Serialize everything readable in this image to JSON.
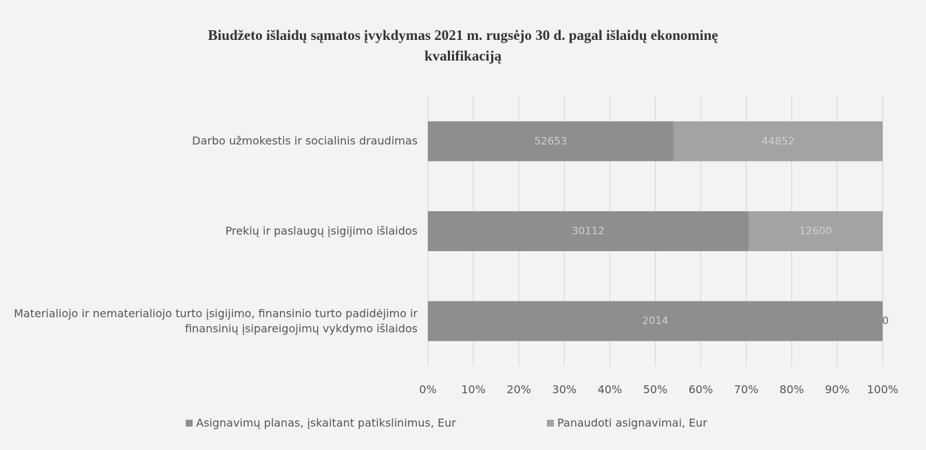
{
  "chart_data": {
    "type": "bar",
    "orientation": "horizontal",
    "stacking": "percent",
    "title": "Biudžeto išlaidų sąmatos įvykdymas 2021 m. rugsėjo 30 d. pagal išlaidų ekonominę kvalifikaciją",
    "categories": [
      "Darbo užmokestis ir socialinis draudimas",
      "Prekių ir paslaugų įsigijimo išlaidos",
      "Materialiojo ir nematerialiojo turto įsigijimo, finansinio turto padidėjimo ir finansinių įsipareigojimų vykdymo išlaidos"
    ],
    "series": [
      {
        "name": "Asignavimų planas, įskaitant patikslinimus, Eur",
        "color": "#8e8e8e",
        "values": [
          52653,
          30112,
          2014
        ]
      },
      {
        "name": "Panaudoti asignavimai, Eur",
        "color": "#a3a3a3",
        "values": [
          44852,
          12600,
          0
        ]
      }
    ],
    "xlim": [
      0,
      100
    ],
    "xticks": [
      {
        "value": 0,
        "label": "0%"
      },
      {
        "value": 10,
        "label": "10%"
      },
      {
        "value": 20,
        "label": "20%"
      },
      {
        "value": 30,
        "label": "30%"
      },
      {
        "value": 40,
        "label": "40%"
      },
      {
        "value": 50,
        "label": "50%"
      },
      {
        "value": 60,
        "label": "60%"
      },
      {
        "value": 70,
        "label": "70%"
      },
      {
        "value": 80,
        "label": "80%"
      },
      {
        "value": 90,
        "label": "90%"
      },
      {
        "value": 100,
        "label": "100%"
      }
    ],
    "grid": true,
    "legend": "bottom"
  }
}
